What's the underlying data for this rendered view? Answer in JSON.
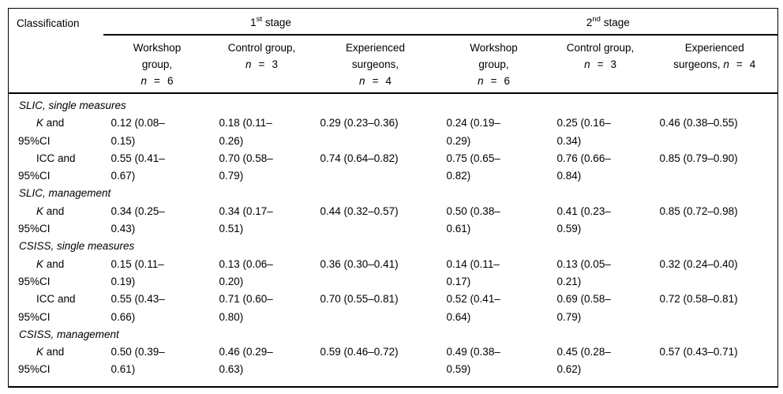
{
  "colors": {
    "text": "#000000",
    "background": "#ffffff",
    "rule": "#000000"
  },
  "table": {
    "header": {
      "classification": "Classification",
      "stage1": {
        "num": "1",
        "sup": "st",
        "rest": " stage"
      },
      "stage2": {
        "num": "2",
        "sup": "nd",
        "rest": " stage"
      },
      "columns": [
        {
          "pre": "Workshop\ngroup,",
          "lead": "",
          "n": "n",
          "eq": "=",
          "val": "6"
        },
        {
          "pre": "Control group,",
          "lead": "",
          "n": "n",
          "eq": "=",
          "val": "3"
        },
        {
          "pre": "Experienced\nsurgeons,",
          "lead": "",
          "n": "n",
          "eq": "=",
          "val": "4"
        },
        {
          "pre": "Workshop\ngroup,",
          "lead": "",
          "n": "n",
          "eq": "=",
          "val": "6"
        },
        {
          "pre": "Control group,",
          "lead": "",
          "n": "n",
          "eq": "=",
          "val": "3"
        },
        {
          "pre": "Experienced",
          "lead": "surgeons, ",
          "n": "n",
          "eq": "=",
          "val": "4"
        }
      ]
    },
    "rows": [
      {
        "kind": "section",
        "segments": [
          {
            "t": "SLIC, single measures",
            "i": true
          }
        ]
      },
      {
        "kind": "data",
        "segments": [
          {
            "t": "K",
            "i": true
          },
          {
            "t": " and\n95%CI",
            "i": false
          }
        ],
        "values": [
          "0.12 (0.08–\n0.15)",
          "0.18 (0.11–\n0.26)",
          "0.29 (0.23–0.36)",
          "0.24 (0.19–\n0.29)",
          "0.25 (0.16–\n0.34)",
          "0.46 (0.38–0.55)"
        ]
      },
      {
        "kind": "data",
        "segments": [
          {
            "t": "ICC and\n95%CI",
            "i": false
          }
        ],
        "values": [
          "0.55 (0.41–\n0.67)",
          "0.70 (0.58–\n0.79)",
          "0.74 (0.64–0.82)",
          "0.75 (0.65–\n0.82)",
          "0.76 (0.66–\n0.84)",
          "0.85 (0.79–0.90)"
        ]
      },
      {
        "kind": "section",
        "segments": [
          {
            "t": "SLIC, management",
            "i": true
          }
        ]
      },
      {
        "kind": "data",
        "segments": [
          {
            "t": "K",
            "i": true
          },
          {
            "t": " and\n95%CI",
            "i": false
          }
        ],
        "values": [
          "0.34 (0.25–\n0.43)",
          "0.34 (0.17–\n0.51)",
          "0.44 (0.32–0.57)",
          "0.50 (0.38–\n0.61)",
          "0.41 (0.23–\n0.59)",
          "0.85 (0.72–0.98)"
        ]
      },
      {
        "kind": "section",
        "segments": [
          {
            "t": "CSISS, single measures",
            "i": true
          }
        ]
      },
      {
        "kind": "data",
        "segments": [
          {
            "t": "K",
            "i": true
          },
          {
            "t": " and\n95%CI",
            "i": false
          }
        ],
        "values": [
          "0.15 (0.11–\n0.19)",
          "0.13 (0.06–\n0.20)",
          "0.36 (0.30–0.41)",
          "0.14 (0.11–\n0.17)",
          "0.13 (0.05–\n0.21)",
          "0.32 (0.24–0.40)"
        ]
      },
      {
        "kind": "data",
        "segments": [
          {
            "t": "ICC and\n95%CI",
            "i": false
          }
        ],
        "values": [
          "0.55 (0.43–\n0.66)",
          "0.71 (0.60–\n0.80)",
          "0.70 (0.55–0.81)",
          "0.52 (0.41–\n0.64)",
          "0.69 (0.58–\n0.79)",
          "0.72 (0.58–0.81)"
        ]
      },
      {
        "kind": "section",
        "segments": [
          {
            "t": "CSISS, management",
            "i": true
          }
        ]
      },
      {
        "kind": "data",
        "segments": [
          {
            "t": "K",
            "i": true
          },
          {
            "t": " and\n95%CI",
            "i": false
          }
        ],
        "values": [
          "0.50 (0.39–\n0.61)",
          "0.46 (0.29–\n0.63)",
          "0.59 (0.46–0.72)",
          "0.49 (0.38–\n0.59)",
          "0.45 (0.28–\n0.62)",
          "0.57 (0.43–0.71)"
        ]
      }
    ]
  }
}
